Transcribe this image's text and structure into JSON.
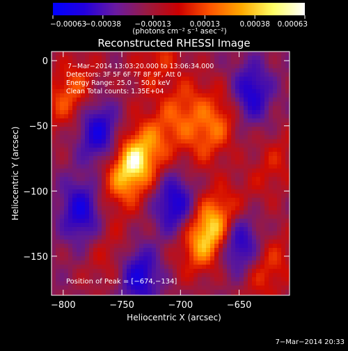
{
  "chart_data": {
    "type": "heatmap",
    "title": "Reconstructed RHESSI Image",
    "xlabel": "Heliocentric X (arcsec)",
    "ylabel": "Heliocentric Y (arcsec)",
    "xlim": [
      -810,
      -607
    ],
    "ylim": [
      -180,
      7
    ],
    "xticks": [
      -800,
      -750,
      -700,
      -650
    ],
    "xtick_labels": [
      "−800",
      "−750",
      "−700",
      "−650"
    ],
    "yticks": [
      0,
      -50,
      -100,
      -150
    ],
    "ytick_labels": [
      "0",
      "−50",
      "−100",
      "−150"
    ],
    "colorbar": {
      "range": [
        -0.00063,
        0.00063
      ],
      "ticks": [
        -0.00063,
        -0.00038,
        -0.00013,
        0.00013,
        0.00038,
        0.00063
      ],
      "tick_labels": [
        "−0.00063",
        "−0.00038",
        "−0.00013",
        "0.00013",
        "0.00038",
        "0.00063"
      ],
      "unit_text": "(photons cm⁻² s⁻¹ asec⁻²)",
      "colors": [
        "#0000ff",
        "#2200dd",
        "#6a1aa0",
        "#9a1a40",
        "#cc0000",
        "#ff5500",
        "#ffaa00",
        "#ffff66",
        "#ffffff"
      ]
    },
    "annotations": [
      "7−Mar−2014 13:03:20.000 to 13:06:34.000",
      "Detectors: 3F 5F 6F 7F 8F 9F, Att 0",
      "Energy Range: 25.0 − 50.0 keV",
      "Clean    Total counts: 1.35E+04"
    ],
    "peak_label": "Position of Peak = [−674,−134]",
    "peak": [
      -674,
      -134
    ],
    "sources": [
      {
        "x": -740,
        "y": -80,
        "intensity": 1.0
      },
      {
        "x": -675,
        "y": -131,
        "intensity": 0.95
      },
      {
        "x": -672,
        "y": -52,
        "intensity": 0.55
      },
      {
        "x": -700,
        "y": -40,
        "intensity": 0.45
      },
      {
        "x": -795,
        "y": -25,
        "intensity": 0.5
      },
      {
        "x": -625,
        "y": -160,
        "intensity": 0.4
      },
      {
        "x": -620,
        "y": -80,
        "intensity": 0.3
      },
      {
        "x": -720,
        "y": 0,
        "intensity": 0.35
      },
      {
        "x": -760,
        "y": -150,
        "intensity": 0.25
      }
    ],
    "negative_regions": [
      {
        "x": -770,
        "y": -55
      },
      {
        "x": -705,
        "y": -110
      },
      {
        "x": -650,
        "y": -140
      },
      {
        "x": -785,
        "y": -115
      },
      {
        "x": -735,
        "y": -165
      },
      {
        "x": -640,
        "y": -25
      }
    ]
  },
  "footer": {
    "timestamp": "7−Mar−2014 20:33"
  }
}
